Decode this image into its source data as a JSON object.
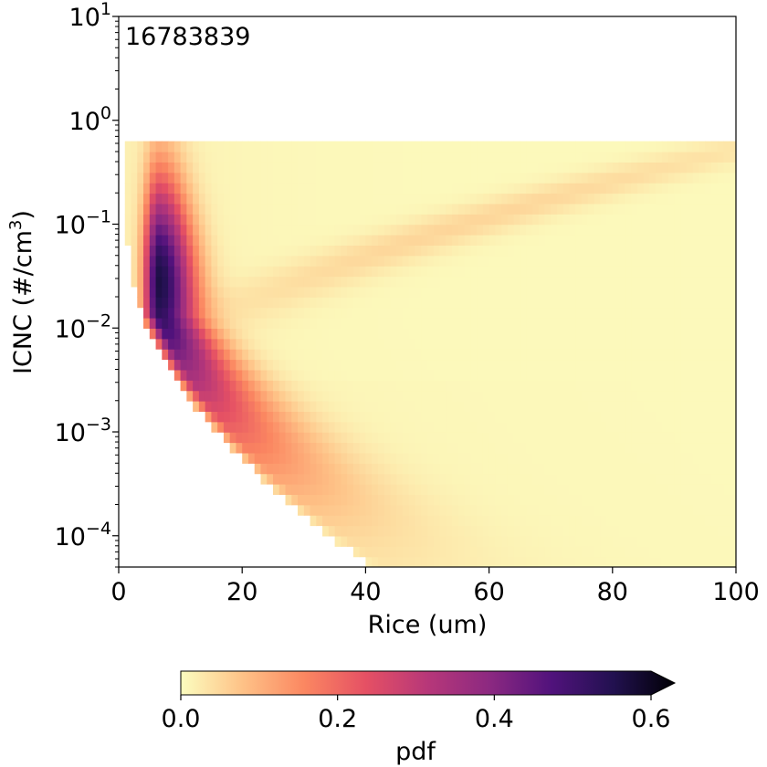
{
  "chart_data": {
    "type": "heatmap",
    "annotation": "16783839",
    "xlabel": "Rice (um)",
    "ylabel_main": "ICNC (#/cm",
    "ylabel_sup": "3",
    "ylabel_close": ")",
    "xlim": [
      0,
      100
    ],
    "ylim": [
      5e-05,
      10
    ],
    "yscale": "log",
    "xticks": [
      0,
      20,
      40,
      60,
      80,
      100
    ],
    "xtick_labels": [
      "0",
      "20",
      "40",
      "60",
      "80",
      "100"
    ],
    "yticks": [
      {
        "value": 10,
        "base": "10",
        "exp": "1"
      },
      {
        "value": 1,
        "base": "10",
        "exp": "0"
      },
      {
        "value": 0.1,
        "base": "10",
        "exp": "−1"
      },
      {
        "value": 0.01,
        "base": "10",
        "exp": "−2"
      },
      {
        "value": 0.001,
        "base": "10",
        "exp": "−3"
      },
      {
        "value": 0.0001,
        "base": "10",
        "exp": "−4"
      }
    ],
    "bins": {
      "x_bin_width": 1,
      "y_bins_per_decade": 10,
      "y_max": 0.6
    },
    "colorbar": {
      "label": "pdf",
      "range": [
        0,
        0.6
      ],
      "ticks": [
        0,
        0.2,
        0.4,
        0.6
      ],
      "tick_labels": [
        "0.0",
        "0.2",
        "0.4",
        "0.6"
      ],
      "extend": "max",
      "colormap": "magma_r",
      "stops": [
        "#fcfdbf",
        "#fec287",
        "#fb8761",
        "#e55064",
        "#b73779",
        "#8c2981",
        "#51127c",
        "#221150",
        "#000004"
      ]
    }
  }
}
